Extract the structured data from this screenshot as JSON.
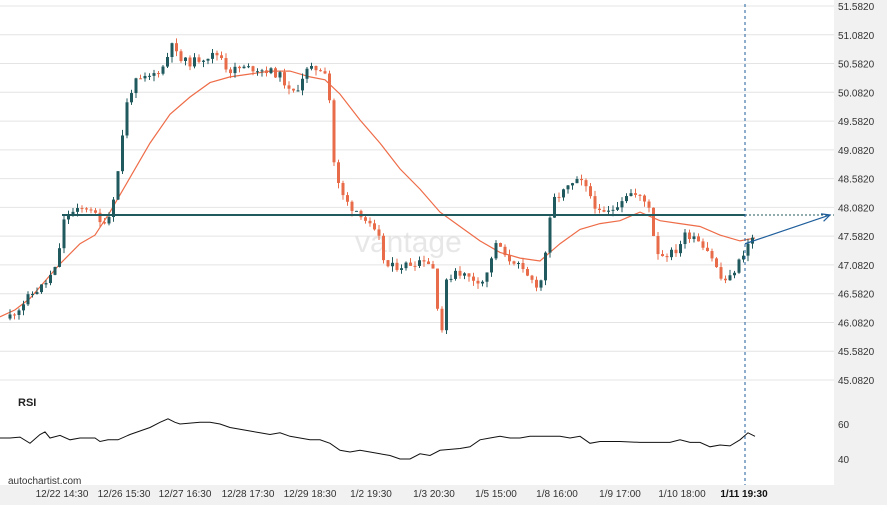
{
  "chart_data": {
    "type": "candlestick",
    "price_axis": {
      "ticks": [
        "51.5820",
        "51.0820",
        "50.5820",
        "50.0820",
        "49.5820",
        "49.0820",
        "48.5820",
        "48.0820",
        "47.5820",
        "47.0820",
        "46.5820",
        "46.0820",
        "45.5820",
        "45.0820"
      ],
      "range": [
        44.8,
        51.6
      ]
    },
    "time_axis": {
      "ticks": [
        "12/22 14:30",
        "12/26 15:30",
        "12/27 16:30",
        "12/28 17:30",
        "12/29 18:30",
        "1/2 19:30",
        "1/3 20:30",
        "1/5 15:00",
        "1/8 16:00",
        "1/9 17:00",
        "1/10 18:00",
        "1/11 19:30"
      ],
      "highlighted_tick": "1/11 19:30"
    },
    "key_level": 47.95,
    "moving_average": [
      [
        0,
        46.18
      ],
      [
        15,
        46.3
      ],
      [
        30,
        46.5
      ],
      [
        45,
        46.8
      ],
      [
        60,
        47.1
      ],
      [
        80,
        47.45
      ],
      [
        95,
        47.6
      ],
      [
        110,
        48.0
      ],
      [
        130,
        48.6
      ],
      [
        150,
        49.2
      ],
      [
        170,
        49.7
      ],
      [
        190,
        50.0
      ],
      [
        210,
        50.25
      ],
      [
        230,
        50.35
      ],
      [
        250,
        50.4
      ],
      [
        270,
        50.45
      ],
      [
        290,
        50.45
      ],
      [
        310,
        50.35
      ],
      [
        325,
        50.3
      ],
      [
        340,
        50.05
      ],
      [
        360,
        49.6
      ],
      [
        380,
        49.2
      ],
      [
        400,
        48.75
      ],
      [
        420,
        48.4
      ],
      [
        440,
        48.0
      ],
      [
        460,
        47.75
      ],
      [
        480,
        47.5
      ],
      [
        500,
        47.3
      ],
      [
        520,
        47.2
      ],
      [
        540,
        47.15
      ],
      [
        560,
        47.45
      ],
      [
        580,
        47.7
      ],
      [
        600,
        47.8
      ],
      [
        620,
        47.85
      ],
      [
        640,
        48.0
      ],
      [
        660,
        47.85
      ],
      [
        680,
        47.8
      ],
      [
        700,
        47.75
      ],
      [
        720,
        47.6
      ],
      [
        740,
        47.5
      ],
      [
        755,
        47.55
      ]
    ],
    "forecast_path": [
      [
        745,
        47.45
      ],
      [
        830,
        47.95
      ]
    ],
    "rsi": {
      "label": "RSI",
      "ticks": [
        "60",
        "40"
      ],
      "range": [
        30,
        70
      ],
      "values": [
        [
          0,
          52
        ],
        [
          10,
          52
        ],
        [
          20,
          52.5
        ],
        [
          30,
          49
        ],
        [
          40,
          54
        ],
        [
          45,
          55.5
        ],
        [
          50,
          52
        ],
        [
          60,
          53.5
        ],
        [
          70,
          51
        ],
        [
          80,
          52
        ],
        [
          95,
          52
        ],
        [
          100,
          50
        ],
        [
          108,
          51
        ],
        [
          118,
          51
        ],
        [
          130,
          54
        ],
        [
          140,
          56
        ],
        [
          150,
          58
        ],
        [
          160,
          61
        ],
        [
          168,
          63
        ],
        [
          175,
          61
        ],
        [
          180,
          60
        ],
        [
          190,
          60.5
        ],
        [
          200,
          61
        ],
        [
          210,
          61
        ],
        [
          220,
          60
        ],
        [
          230,
          58
        ],
        [
          240,
          57
        ],
        [
          250,
          56
        ],
        [
          260,
          55
        ],
        [
          270,
          54
        ],
        [
          280,
          55
        ],
        [
          290,
          53
        ],
        [
          300,
          52
        ],
        [
          310,
          51
        ],
        [
          320,
          51
        ],
        [
          330,
          49
        ],
        [
          340,
          45
        ],
        [
          350,
          44
        ],
        [
          360,
          45
        ],
        [
          370,
          44
        ],
        [
          380,
          43
        ],
        [
          390,
          42
        ],
        [
          400,
          40
        ],
        [
          410,
          40
        ],
        [
          420,
          43
        ],
        [
          430,
          42
        ],
        [
          440,
          45
        ],
        [
          450,
          45.5
        ],
        [
          460,
          46
        ],
        [
          470,
          47
        ],
        [
          480,
          51
        ],
        [
          490,
          52
        ],
        [
          500,
          53
        ],
        [
          510,
          52
        ],
        [
          520,
          52
        ],
        [
          530,
          53
        ],
        [
          540,
          53
        ],
        [
          550,
          53
        ],
        [
          560,
          53
        ],
        [
          570,
          52
        ],
        [
          580,
          53
        ],
        [
          590,
          49
        ],
        [
          600,
          50
        ],
        [
          620,
          50
        ],
        [
          640,
          49.5
        ],
        [
          660,
          49.5
        ],
        [
          670,
          49.5
        ],
        [
          680,
          51
        ],
        [
          690,
          49.5
        ],
        [
          700,
          49.5
        ],
        [
          710,
          47
        ],
        [
          720,
          48
        ],
        [
          730,
          47.5
        ],
        [
          740,
          51
        ],
        [
          748,
          55
        ],
        [
          755,
          53
        ]
      ]
    },
    "marker_x_label": "1/11 19:30",
    "watermark": "vantage",
    "source_credit": "autochartist.com"
  },
  "colors": {
    "bull": "#205a5e",
    "bear": "#e96c4a",
    "ma": "#ee6c48",
    "level": "#205a5e",
    "rsi_line": "#111111",
    "marker": "#1f5e9c",
    "grid": "#e4e4e4",
    "axis_bg": "#f1f1f1"
  }
}
